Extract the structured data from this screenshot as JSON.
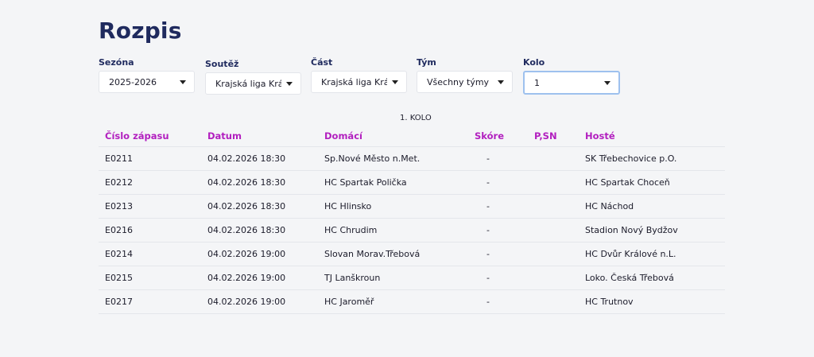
{
  "page": {
    "title": "Rozpis"
  },
  "filters": {
    "season": {
      "label": "Sezóna",
      "value": "2025-2026"
    },
    "competition": {
      "label": "Soutěž",
      "value": "Krajská liga Královéh"
    },
    "part": {
      "label": "Část",
      "value": "Krajská liga Královéh"
    },
    "team": {
      "label": "Tým",
      "value": "Všechny týmy"
    },
    "round": {
      "label": "Kolo",
      "value": "1"
    }
  },
  "schedule": {
    "round_title": "1. KOLO",
    "columns": [
      "Číslo zápasu",
      "Datum",
      "Domácí",
      "Skóre",
      "P,SN",
      "Hosté"
    ],
    "rows": [
      {
        "id": "E0211",
        "date": "04.02.2026 18:30",
        "home": "Sp.Nové Město n.Met.",
        "score": "-",
        "psn": "",
        "away": "SK Třebechovice p.O."
      },
      {
        "id": "E0212",
        "date": "04.02.2026 18:30",
        "home": "HC Spartak Polička",
        "score": "-",
        "psn": "",
        "away": "HC Spartak Choceň"
      },
      {
        "id": "E0213",
        "date": "04.02.2026 18:30",
        "home": "HC Hlinsko",
        "score": "-",
        "psn": "",
        "away": "HC Náchod"
      },
      {
        "id": "E0216",
        "date": "04.02.2026 18:30",
        "home": "HC Chrudim",
        "score": "-",
        "psn": "",
        "away": "Stadion Nový Bydžov"
      },
      {
        "id": "E0214",
        "date": "04.02.2026 19:00",
        "home": "Slovan Morav.Třebová",
        "score": "-",
        "psn": "",
        "away": "HC Dvůr Králové n.L."
      },
      {
        "id": "E0215",
        "date": "04.02.2026 19:00",
        "home": "TJ Lanškroun",
        "score": "-",
        "psn": "",
        "away": "Loko. Česká Třebová"
      },
      {
        "id": "E0217",
        "date": "04.02.2026 19:00",
        "home": "HC Jaroměř",
        "score": "-",
        "psn": "",
        "away": "HC Trutnov"
      }
    ]
  },
  "colors": {
    "title": "#1f2a5e",
    "header_accent": "#b21fbf",
    "focus_border": "#9ec1ee"
  }
}
